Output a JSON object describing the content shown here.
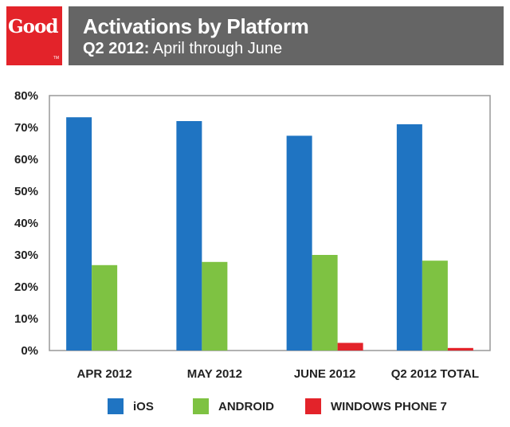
{
  "header": {
    "logo_text": "Good",
    "logo_tm": "TM",
    "title": "Activations by Platform",
    "subtitle_bold": "Q2 2012:",
    "subtitle_rest": " April through June",
    "logo_color": "#e3232a",
    "bar_color": "#656565"
  },
  "chart_data": {
    "type": "bar",
    "title": "Activations by Platform",
    "subtitle": "Q2 2012: April through June",
    "categories": [
      "APR 2012",
      "MAY 2012",
      "JUNE 2012",
      "Q2 2012 TOTAL"
    ],
    "series": [
      {
        "name": "iOS",
        "color": "#1f74c2",
        "values": [
          73.2,
          72.0,
          67.4,
          71.0
        ]
      },
      {
        "name": "ANDROID",
        "color": "#7ec242",
        "values": [
          26.8,
          27.8,
          30.0,
          28.2
        ]
      },
      {
        "name": "WINDOWS PHONE 7",
        "color": "#e3232a",
        "values": [
          0,
          0,
          2.4,
          0.8
        ]
      }
    ],
    "ylim": [
      0,
      80
    ],
    "yticks": [
      "0%",
      "10%",
      "20%",
      "30%",
      "40%",
      "50%",
      "60%",
      "70%",
      "80%"
    ],
    "xlabel": "",
    "ylabel": "",
    "grid": false,
    "legend_position": "bottom"
  }
}
